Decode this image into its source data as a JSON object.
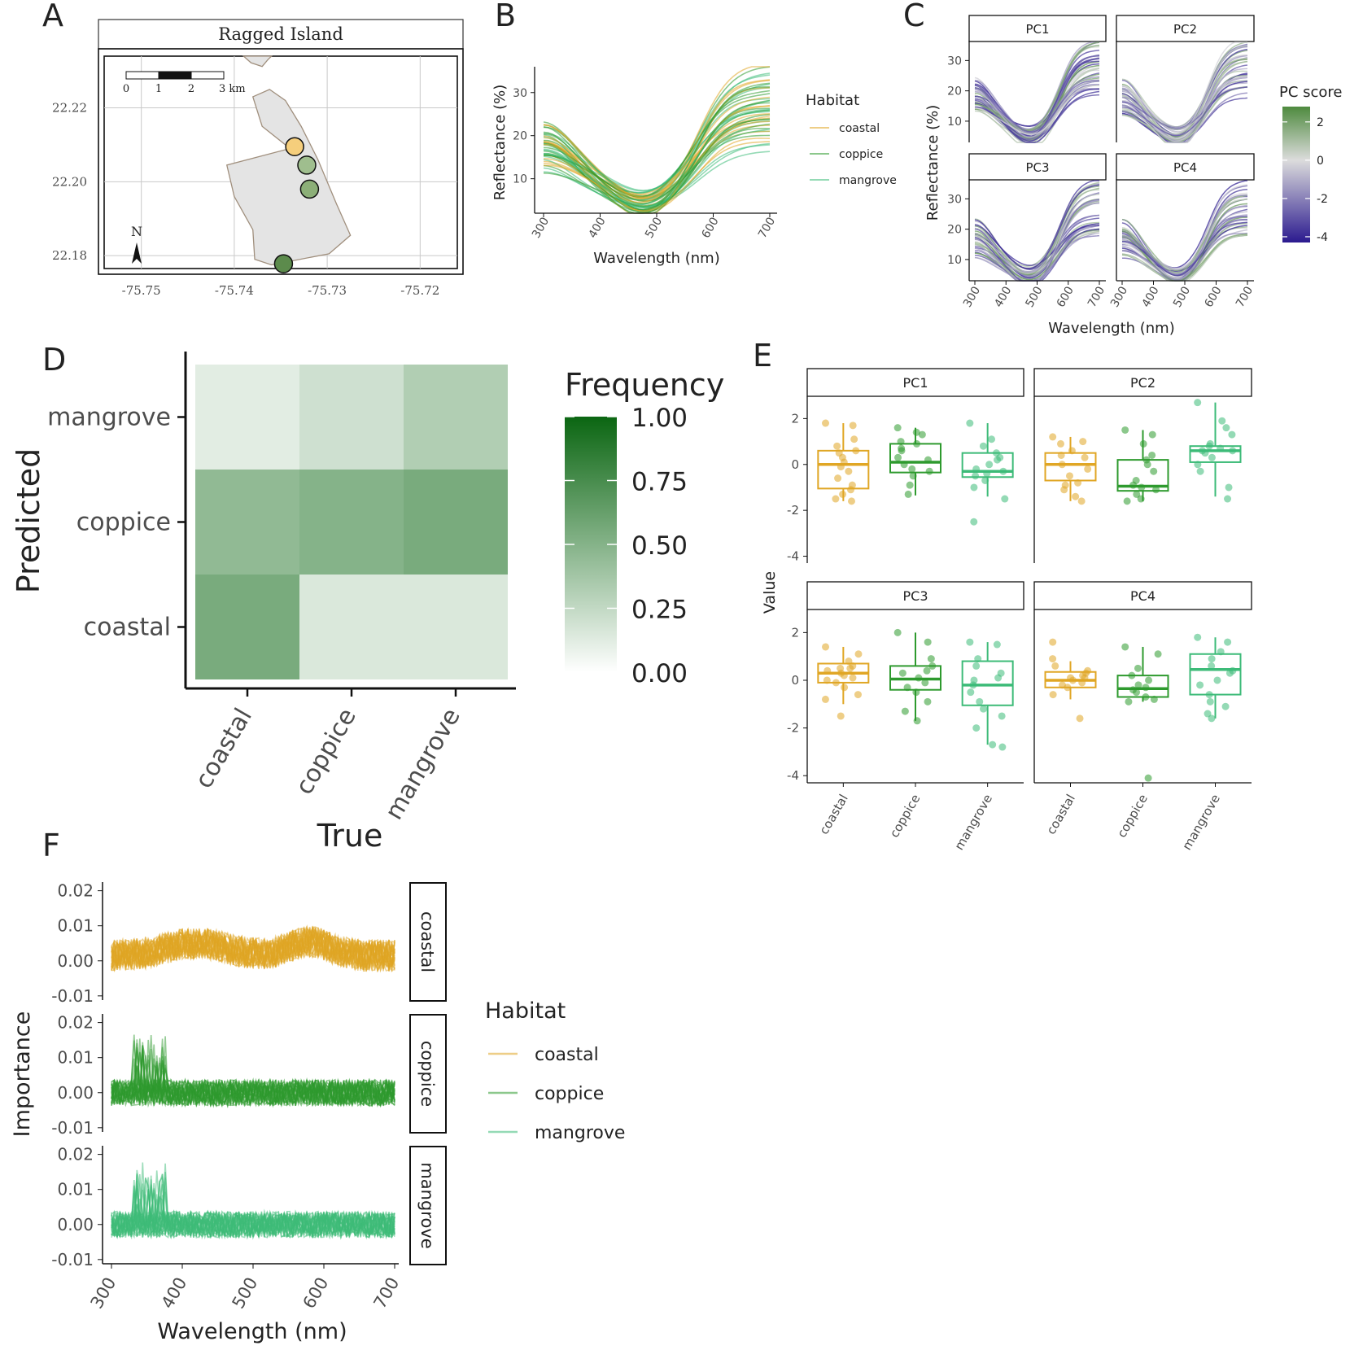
{
  "colors": {
    "coastal": "#E0A624",
    "coppice": "#2E9A2E",
    "mangrove": "#3DBB78",
    "land": "#E4E4E4",
    "land_border": "#A08F7D",
    "grid": "#C9C9C9",
    "pc_high": "#4E8A3E",
    "pc_mid": "#DCDCDC",
    "pc_low": "#2B1A8F",
    "freq_high": "#0B6612",
    "freq_low": "#FFFFFF"
  },
  "panel_labels": {
    "a": "A",
    "b": "B",
    "c": "C",
    "d": "D",
    "e": "E",
    "f": "F"
  },
  "chart_data": [
    {
      "id": "A",
      "type": "map",
      "title": "Ragged Island",
      "x_ticks": [
        "-75.75",
        "-75.74",
        "-75.73",
        "-75.72"
      ],
      "x_tick_values": [
        -75.75,
        -75.74,
        -75.73,
        -75.72
      ],
      "y_ticks": [
        "22.22",
        "22.20",
        "22.18"
      ],
      "y_tick_values": [
        22.22,
        22.2,
        22.18
      ],
      "xlim": [
        -75.754,
        -75.716
      ],
      "ylim": [
        22.1765,
        22.234
      ],
      "scale_bar_labels": [
        "0",
        "1",
        "2",
        "3 km"
      ],
      "north_label": "N",
      "points": [
        {
          "lon": -75.7335,
          "lat": 22.2095,
          "fill": "#F5CE7C"
        },
        {
          "lon": -75.7322,
          "lat": 22.2045,
          "fill": "#9FBE8E"
        },
        {
          "lon": -75.7319,
          "lat": 22.198,
          "fill": "#8CAF78"
        },
        {
          "lon": -75.7347,
          "lat": 22.1778,
          "fill": "#5C8B4C"
        }
      ],
      "land_polygons": [
        [
          [
            -75.7362,
            22.225
          ],
          [
            -75.7345,
            22.222
          ],
          [
            -75.7328,
            22.215
          ],
          [
            -75.731,
            22.206
          ],
          [
            -75.729,
            22.194
          ],
          [
            -75.7275,
            22.1855
          ],
          [
            -75.7298,
            22.1805
          ],
          [
            -75.736,
            22.1775
          ],
          [
            -75.7378,
            22.179
          ],
          [
            -75.738,
            22.187
          ],
          [
            -75.74,
            22.196
          ],
          [
            -75.7408,
            22.2045
          ],
          [
            -75.734,
            22.209
          ],
          [
            -75.737,
            22.215
          ],
          [
            -75.738,
            22.223
          ]
        ],
        [
          [
            -75.739,
            22.234
          ],
          [
            -75.7382,
            22.2322
          ],
          [
            -75.737,
            22.2312
          ],
          [
            -75.7364,
            22.233
          ],
          [
            -75.736,
            22.234
          ]
        ]
      ]
    },
    {
      "id": "B",
      "type": "line",
      "xlabel": "Wavelength (nm)",
      "ylabel": "Reflectance (%)",
      "x_ticks": [
        300,
        400,
        500,
        600,
        700
      ],
      "y_ticks": [
        10,
        20,
        30
      ],
      "xlim": [
        300,
        700
      ],
      "ylim": [
        2,
        36
      ],
      "legend_title": "Habitat",
      "legend": [
        "coastal",
        "coppice",
        "mangrove"
      ],
      "legend_position": "right"
    },
    {
      "id": "C",
      "type": "line",
      "facets": [
        "PC1",
        "PC2",
        "PC3",
        "PC4"
      ],
      "xlabel": "Wavelength (nm)",
      "ylabel": "Reflectance (%)",
      "x_ticks": [
        300,
        400,
        500,
        600,
        700
      ],
      "y_ticks": [
        10,
        20,
        30
      ],
      "xlim": [
        300,
        700
      ],
      "ylim": [
        3,
        36
      ],
      "legend_title": "PC score",
      "colorbar_ticks": [
        2,
        0,
        -2,
        -4
      ],
      "colorbar_range": [
        -4.3,
        2.8
      ],
      "legend_position": "right"
    },
    {
      "id": "D",
      "type": "heatmap",
      "xlabel": "True",
      "ylabel": "Predicted",
      "x_categories": [
        "coastal",
        "coppice",
        "mangrove"
      ],
      "y_categories": [
        "coastal",
        "coppice",
        "mangrove"
      ],
      "values": [
        [
          0.55,
          0.15,
          0.15
        ],
        [
          0.45,
          0.5,
          0.55
        ],
        [
          0.12,
          0.2,
          0.32
        ]
      ],
      "legend_title": "Frequency",
      "colorbar_ticks": [
        "1.00",
        "0.75",
        "0.50",
        "0.25",
        "0.00"
      ],
      "colorbar_range": [
        0,
        1
      ]
    },
    {
      "id": "E",
      "type": "boxplot",
      "facets": [
        "PC1",
        "PC2",
        "PC3",
        "PC4"
      ],
      "ylabel": "Value",
      "categories": [
        "coastal",
        "coppice",
        "mangrove"
      ],
      "y_ticks": [
        2,
        0,
        -2,
        -4
      ],
      "ylim": [
        -4.3,
        2.9
      ],
      "boxes": {
        "PC1": [
          [
            -1.6,
            -1.05,
            0.0,
            0.6,
            1.8
          ],
          [
            -1.35,
            -0.35,
            0.1,
            0.9,
            1.6
          ],
          [
            -1.4,
            -0.55,
            -0.3,
            0.5,
            1.8
          ]
        ],
        "PC2": [
          [
            -1.6,
            -0.7,
            0.0,
            0.5,
            1.2
          ],
          [
            -1.6,
            -1.15,
            -0.95,
            0.2,
            1.5
          ],
          [
            -1.4,
            0.1,
            0.6,
            0.8,
            2.7
          ]
        ],
        "PC3": [
          [
            -1.0,
            -0.1,
            0.3,
            0.7,
            1.4
          ],
          [
            -1.7,
            -0.4,
            0.05,
            0.6,
            2.0
          ],
          [
            -2.7,
            -1.05,
            -0.2,
            0.8,
            1.6
          ]
        ],
        "PC4": [
          [
            -0.8,
            -0.3,
            0.0,
            0.35,
            0.8
          ],
          [
            -0.9,
            -0.7,
            -0.35,
            0.2,
            1.4
          ],
          [
            -1.6,
            -0.6,
            0.45,
            1.1,
            1.8
          ]
        ]
      },
      "points": {
        "PC1": [
          [
            1.8,
            1.7,
            1.1,
            0.8,
            0.5,
            0.3,
            0.1,
            -0.1,
            -0.3,
            -0.6,
            -0.9,
            -1.1,
            -1.3,
            -1.5,
            -1.6,
            0.6
          ],
          [
            1.6,
            1.3,
            1.0,
            0.9,
            0.6,
            0.3,
            0.2,
            0.0,
            -0.2,
            -0.3,
            -0.5,
            -0.9,
            -1.3,
            1.4,
            0.7
          ],
          [
            1.8,
            1.1,
            0.8,
            0.5,
            0.3,
            0.0,
            -0.2,
            -0.3,
            -0.5,
            -0.7,
            -1.0,
            -1.5,
            -2.5,
            0.2,
            -0.4
          ]
        ],
        "PC2": [
          [
            1.2,
            1.0,
            0.9,
            0.6,
            0.3,
            0.0,
            -0.2,
            -0.5,
            -0.8,
            -1.1,
            -1.4,
            -1.6,
            0.4,
            -0.9
          ],
          [
            1.5,
            1.3,
            0.9,
            0.4,
            0.0,
            -0.3,
            -0.7,
            -0.9,
            -1.0,
            -1.1,
            -1.3,
            -1.5,
            -1.6,
            0.2
          ],
          [
            2.7,
            1.9,
            1.6,
            1.3,
            0.9,
            0.8,
            0.7,
            0.6,
            0.5,
            0.3,
            0.0,
            -0.3,
            -1.0,
            -1.5,
            0.6
          ]
        ],
        "PC3": [
          [
            1.4,
            1.1,
            0.8,
            0.6,
            0.5,
            0.4,
            0.3,
            0.2,
            0.1,
            -0.1,
            -0.3,
            -0.6,
            -0.8,
            -1.5,
            0.0,
            0.5
          ],
          [
            2.0,
            1.6,
            0.9,
            0.6,
            0.3,
            0.1,
            -0.1,
            -0.3,
            -0.5,
            -0.9,
            -1.3,
            -1.7,
            0.4
          ],
          [
            1.6,
            1.5,
            0.9,
            0.6,
            0.3,
            0.0,
            -0.2,
            -0.5,
            -0.9,
            -1.2,
            -1.5,
            -2.0,
            -2.7,
            -2.8,
            0.1
          ]
        ],
        "PC4": [
          [
            1.6,
            0.9,
            0.6,
            0.4,
            0.3,
            0.2,
            0.1,
            0.0,
            -0.1,
            -0.2,
            -0.3,
            -0.6,
            -1.6,
            0.1
          ],
          [
            1.4,
            1.1,
            0.5,
            0.2,
            0.0,
            -0.2,
            -0.4,
            -0.5,
            -0.7,
            -0.8,
            -0.9,
            -4.1,
            -0.3
          ],
          [
            1.8,
            1.6,
            1.2,
            0.9,
            0.6,
            0.3,
            0.0,
            -0.2,
            -0.6,
            -0.9,
            -1.1,
            -1.4,
            -1.6,
            0.4
          ]
        ]
      }
    },
    {
      "id": "F",
      "type": "line",
      "facets": [
        "coastal",
        "coppice",
        "mangrove"
      ],
      "xlabel": "Wavelength (nm)",
      "ylabel": "Importance",
      "x_ticks": [
        300,
        400,
        500,
        600,
        700
      ],
      "y_ticks": [
        "0.02",
        "0.01",
        "0.00",
        "-0.01"
      ],
      "y_tick_values": [
        0.02,
        0.01,
        0.0,
        -0.01
      ],
      "xlim": [
        300,
        700
      ],
      "ylim": [
        -0.0112,
        0.022
      ],
      "legend_title": "Habitat",
      "legend": [
        "coastal",
        "coppice",
        "mangrove"
      ],
      "legend_position": "right"
    }
  ]
}
